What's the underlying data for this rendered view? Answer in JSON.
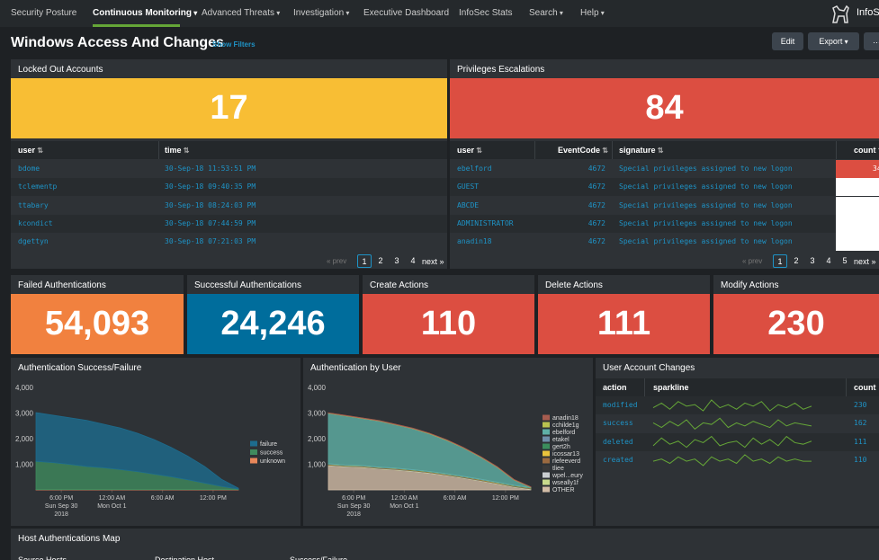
{
  "nav": {
    "items": [
      "Security Posture",
      "Continuous Monitoring",
      "Advanced Threats",
      "Investigation",
      "Executive Dashboard",
      "InfoSec Stats",
      "Search",
      "Help"
    ],
    "app": "InfoSec"
  },
  "header": {
    "title": "Windows Access And Changes",
    "show_filters": "Show Filters",
    "buttons": [
      "Edit",
      "Export"
    ]
  },
  "locked": {
    "title": "Locked Out Accounts",
    "value": "17",
    "color": "#f8be34",
    "columns": [
      "user",
      "time"
    ],
    "rows": [
      [
        "bdome",
        "30-Sep-18 11:53:51 PM"
      ],
      [
        "tclementp",
        "30-Sep-18 09:40:35 PM"
      ],
      [
        "ttabary",
        "30-Sep-18 08:24:03 PM"
      ],
      [
        "kcondict",
        "30-Sep-18 07:44:59 PM"
      ],
      [
        "dgettyn",
        "30-Sep-18 07:21:03 PM"
      ]
    ],
    "pager": {
      "prev": "« prev",
      "pages": [
        "1",
        "2",
        "3",
        "4"
      ],
      "next": "next »"
    }
  },
  "privileges": {
    "title": "Privileges Escalations",
    "value": "84",
    "color": "#dc4e41",
    "columns": [
      "user",
      "EventCode",
      "signature",
      "count"
    ],
    "rows": [
      [
        "ebelford",
        "4672",
        "Special privileges assigned to new logon"
      ],
      [
        "GUEST",
        "4672",
        "Special privileges assigned to new logon"
      ],
      [
        "ABCDE",
        "4672",
        "Special privileges assigned to new logon"
      ],
      [
        "ADMINISTRATOR",
        "4672",
        "Special privileges assigned to new logon"
      ],
      [
        "anadin18",
        "4672",
        "Special privileges assigned to new logon"
      ]
    ],
    "counts": [
      "34"
    ],
    "pager": {
      "prev": "« prev",
      "pages": [
        "1",
        "2",
        "3",
        "4",
        "5"
      ],
      "next": "next »"
    }
  },
  "singles": [
    {
      "title": "Failed Authentications",
      "value": "54,093",
      "color": "#f1813f"
    },
    {
      "title": "Successful Authentications",
      "value": "24,246",
      "color": "#006d9c"
    },
    {
      "title": "Create Actions",
      "value": "110",
      "color": "#dc4e41"
    },
    {
      "title": "Delete Actions",
      "value": "111",
      "color": "#dc4e41"
    },
    {
      "title": "Modify Actions",
      "value": "230",
      "color": "#dc4e41"
    }
  ],
  "chart_data": [
    {
      "type": "area",
      "title": "Authentication Success/Failure",
      "stacked": true,
      "x": [
        0,
        2,
        4,
        6,
        8,
        10,
        12,
        14,
        16,
        18,
        20,
        22,
        24
      ],
      "xlim": [
        0,
        24
      ],
      "xticks": [
        {
          "value": 3,
          "label": [
            "6:00 PM",
            "Sun Sep 30",
            "2018"
          ]
        },
        {
          "value": 9,
          "label": [
            "12:00 AM",
            "Mon Oct 1"
          ]
        },
        {
          "value": 15,
          "label": [
            "6:00 AM"
          ]
        },
        {
          "value": 21,
          "label": [
            "12:00 PM"
          ]
        }
      ],
      "ylim": [
        0,
        4000
      ],
      "yticks": [
        {
          "value": 1000,
          "label": "1,000"
        },
        {
          "value": 2000,
          "label": "2,000"
        },
        {
          "value": 3000,
          "label": "3,000"
        },
        {
          "value": 4000,
          "label": "4,000"
        }
      ],
      "series": [
        {
          "name": "failure",
          "color": "#1d6c8e",
          "values": [
            1900,
            1850,
            1820,
            1800,
            1700,
            1620,
            1500,
            1350,
            1150,
            920,
            650,
            280,
            30
          ]
        },
        {
          "name": "success",
          "color": "#3f8a5e",
          "values": [
            1100,
            1050,
            980,
            900,
            850,
            780,
            700,
            600,
            500,
            380,
            250,
            120,
            20
          ]
        },
        {
          "name": "unknown",
          "color": "#e8875a",
          "values": [
            15,
            15,
            15,
            15,
            15,
            15,
            15,
            15,
            15,
            15,
            15,
            15,
            15
          ]
        }
      ]
    },
    {
      "type": "area",
      "title": "Authentication by User",
      "stacked": true,
      "x": [
        0,
        2,
        4,
        6,
        8,
        10,
        12,
        14,
        16,
        18,
        20,
        22,
        24
      ],
      "xlim": [
        0,
        24
      ],
      "xticks": [
        {
          "value": 3,
          "label": [
            "6:00 PM",
            "Sun Sep 30",
            "2018"
          ]
        },
        {
          "value": 9,
          "label": [
            "12:00 AM",
            "Mon Oct 1"
          ]
        },
        {
          "value": 15,
          "label": [
            "6:00 AM"
          ]
        },
        {
          "value": 21,
          "label": [
            "12:00 PM"
          ]
        }
      ],
      "ylim": [
        0,
        4000
      ],
      "yticks": [
        {
          "value": 1000,
          "label": "1,000"
        },
        {
          "value": 2000,
          "label": "2,000"
        },
        {
          "value": 3000,
          "label": "3,000"
        },
        {
          "value": 4000,
          "label": "4,000"
        }
      ],
      "series": [
        {
          "name": "anadin18",
          "color": "#a65c4f",
          "values": [
            10,
            10,
            10,
            10,
            10,
            10,
            10,
            10,
            10,
            10,
            10,
            10,
            10
          ]
        },
        {
          "name": "cchilde1g",
          "color": "#b8c24f",
          "values": [
            10,
            10,
            10,
            10,
            10,
            10,
            10,
            10,
            10,
            10,
            10,
            10,
            10
          ]
        },
        {
          "name": "ebelford",
          "color": "#5fb0a6",
          "values": [
            1970,
            1920,
            1840,
            1800,
            1690,
            1600,
            1470,
            1310,
            1110,
            870,
            590,
            210,
            10
          ]
        },
        {
          "name": "etakel",
          "color": "#6f8ea8",
          "values": [
            10,
            10,
            10,
            10,
            10,
            10,
            10,
            10,
            10,
            10,
            10,
            10,
            10
          ]
        },
        {
          "name": "gert2h",
          "color": "#3b8d5c",
          "values": [
            10,
            10,
            10,
            10,
            10,
            10,
            10,
            10,
            10,
            10,
            10,
            10,
            10
          ]
        },
        {
          "name": "icossar13",
          "color": "#e9c33c",
          "values": [
            10,
            10,
            10,
            10,
            10,
            10,
            10,
            10,
            10,
            10,
            10,
            10,
            10
          ]
        },
        {
          "name": "rlefeeverd",
          "color": "#9b6a40",
          "values": [
            10,
            10,
            10,
            10,
            10,
            10,
            10,
            10,
            10,
            10,
            10,
            10,
            10
          ]
        },
        {
          "name": "tliee",
          "color": "#3a3a3a",
          "values": [
            10,
            10,
            10,
            10,
            10,
            10,
            10,
            10,
            10,
            10,
            10,
            10,
            10
          ]
        },
        {
          "name": "wpel...eury",
          "color": "#c9cdd0",
          "values": [
            10,
            10,
            10,
            10,
            10,
            10,
            10,
            10,
            10,
            10,
            10,
            10,
            10
          ]
        },
        {
          "name": "wseally1f",
          "color": "#c8d98c",
          "values": [
            10,
            10,
            10,
            10,
            10,
            10,
            10,
            10,
            10,
            10,
            10,
            10,
            10
          ]
        },
        {
          "name": "OTHER",
          "color": "#d2bca6",
          "values": [
            950,
            900,
            880,
            820,
            780,
            720,
            650,
            560,
            460,
            350,
            230,
            110,
            20
          ]
        }
      ]
    }
  ],
  "user_changes": {
    "title": "User Account Changes",
    "columns": [
      "action",
      "sparkline",
      "count"
    ],
    "color": "#65a637",
    "rows": [
      {
        "action": "modified",
        "count": "230",
        "sparkline": [
          4,
          7,
          3,
          8,
          5,
          6,
          2,
          9,
          4,
          6,
          3,
          7,
          5,
          8,
          2,
          6,
          4,
          7,
          3,
          5
        ]
      },
      {
        "action": "success",
        "count": "162",
        "sparkline": [
          6,
          3,
          7,
          4,
          8,
          2,
          6,
          5,
          9,
          3,
          6,
          4,
          7,
          5,
          3,
          8,
          4,
          6,
          5,
          4
        ]
      },
      {
        "action": "deleted",
        "count": "111",
        "sparkline": [
          3,
          8,
          4,
          6,
          2,
          7,
          5,
          9,
          3,
          5,
          6,
          2,
          8,
          4,
          7,
          3,
          9,
          5,
          4,
          6
        ]
      },
      {
        "action": "created",
        "count": "110",
        "sparkline": [
          5,
          6,
          4,
          7,
          5,
          6,
          3,
          7,
          5,
          6,
          4,
          8,
          5,
          6,
          4,
          7,
          5,
          6,
          5,
          5
        ]
      }
    ]
  },
  "map": {
    "title": "Host Authentications Map",
    "columns": [
      "Source Hosts",
      "Destination Host",
      "Success/Failure"
    ]
  }
}
